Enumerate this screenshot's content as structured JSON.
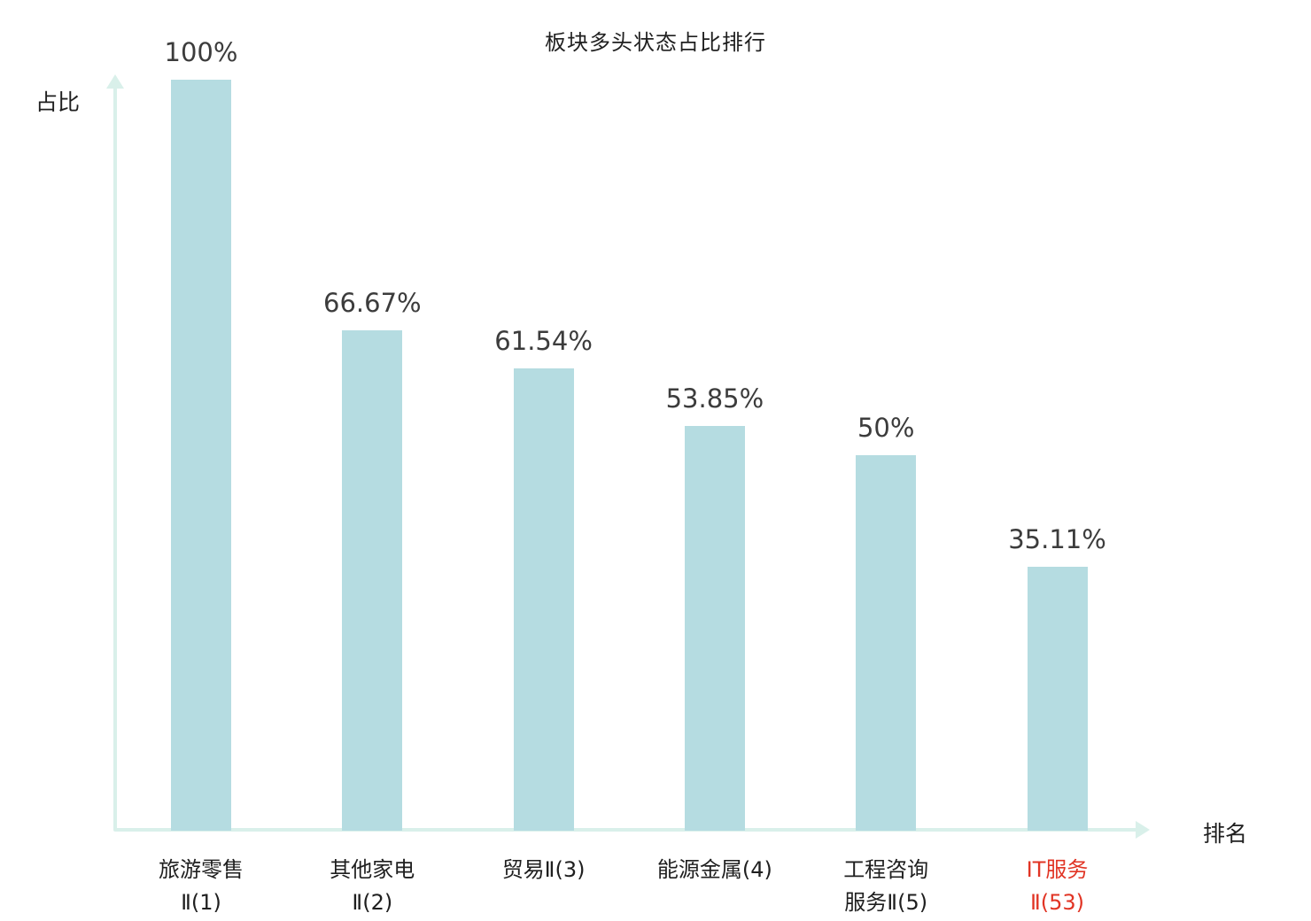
{
  "page": {
    "title": "板块多头状态占比排行"
  },
  "chart_data": {
    "type": "bar",
    "title": "板块多头状态占比排行",
    "xlabel": "排名",
    "ylabel": "占比",
    "ylim": [
      0,
      100
    ],
    "grid": false,
    "legend": "none",
    "categories": [
      "旅游零售Ⅱ(1)",
      "其他家电Ⅱ(2)",
      "贸易Ⅱ(3)",
      "能源金属(4)",
      "工程咨询服务Ⅱ(5)",
      "IT服务Ⅱ(53)"
    ],
    "values": [
      100,
      66.67,
      61.54,
      53.85,
      50,
      35.11
    ],
    "value_labels": [
      "100%",
      "66.67%",
      "61.54%",
      "53.85%",
      "50%",
      "35.11%"
    ],
    "category_lines": [
      [
        "旅游零售",
        "Ⅱ(1)"
      ],
      [
        "其他家电",
        "Ⅱ(2)"
      ],
      [
        "贸易Ⅱ(3)"
      ],
      [
        "能源金属(4)"
      ],
      [
        "工程咨询",
        "服务Ⅱ(5)"
      ],
      [
        "IT服务",
        "Ⅱ(53)"
      ]
    ],
    "highlight_index": 5,
    "colors": {
      "bar": "#b5dce1",
      "axis": "#d9f0ea",
      "text": "#1f1f1f",
      "value_text": "#3c3c3c",
      "highlight_text": "#e13424"
    }
  }
}
